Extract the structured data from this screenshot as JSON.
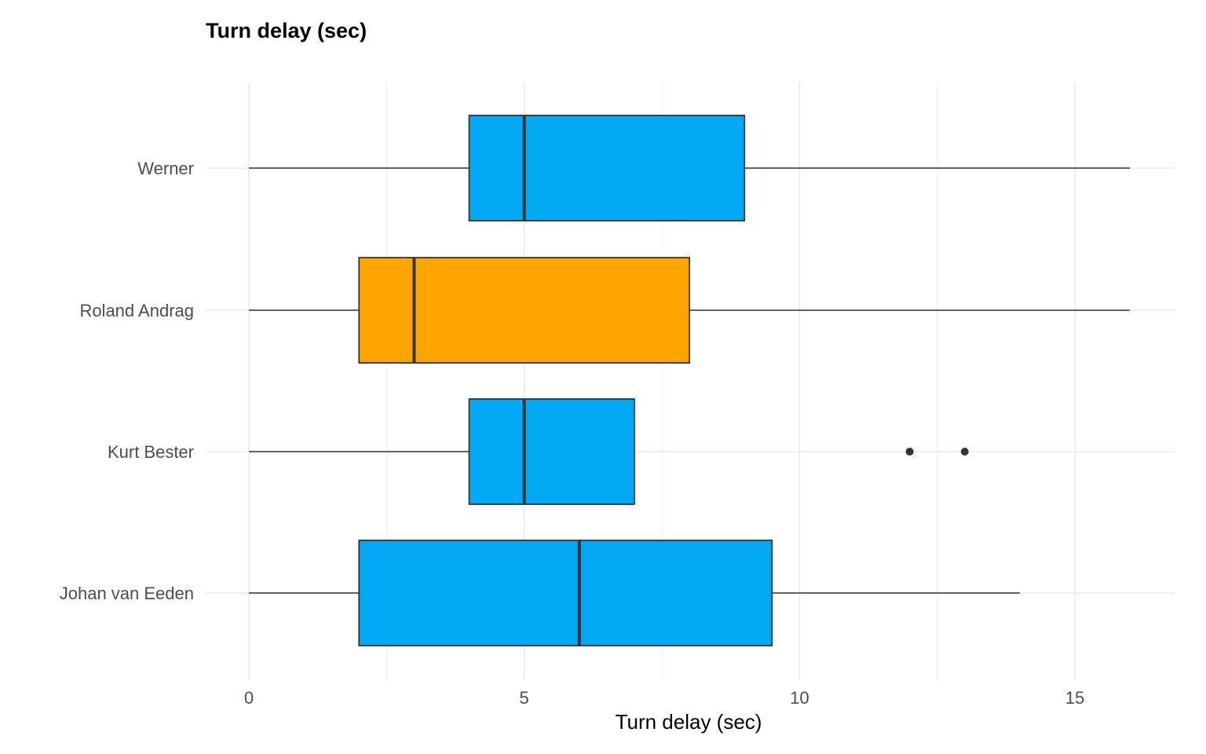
{
  "chart_data": {
    "type": "boxplot",
    "title": "Turn delay (sec)",
    "xlabel": "Turn delay (sec)",
    "ylabel": "",
    "xlim": [
      -0.8,
      16.8
    ],
    "xticks": [
      0,
      5,
      10,
      15
    ],
    "grid": true,
    "orientation": "horizontal",
    "categories": [
      "Werner",
      "Roland Andrag",
      "Kurt Bester",
      "Johan van Eeden"
    ],
    "boxes": [
      {
        "label": "Werner",
        "min": 0,
        "q1": 4,
        "median": 5,
        "q3": 9,
        "max": 16,
        "outliers": [],
        "color": "#03A9F4"
      },
      {
        "label": "Roland Andrag",
        "min": 0,
        "q1": 2,
        "median": 3,
        "q3": 8,
        "max": 16,
        "outliers": [],
        "color": "#FFA500"
      },
      {
        "label": "Kurt Bester",
        "min": 0,
        "q1": 4,
        "median": 5,
        "q3": 7,
        "max": 7,
        "outliers": [
          12,
          13
        ],
        "color": "#03A9F4"
      },
      {
        "label": "Johan van Eeden",
        "min": 0,
        "q1": 2,
        "median": 6,
        "q3": 9.5,
        "max": 14,
        "outliers": [],
        "color": "#03A9F4"
      }
    ]
  }
}
